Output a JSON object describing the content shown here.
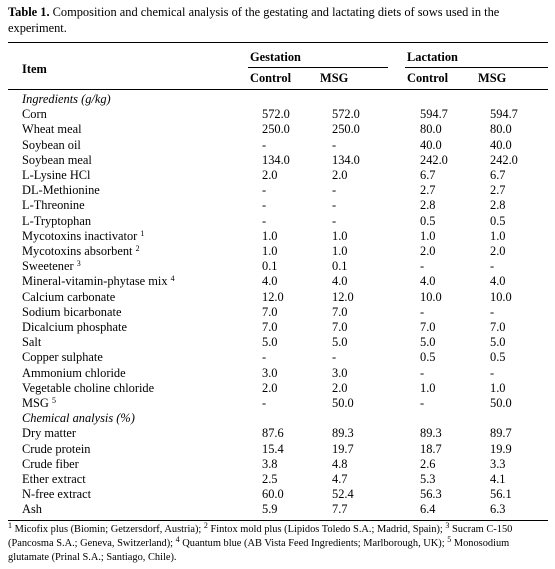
{
  "caption": {
    "label": "Table 1.",
    "text": " Composition and chemical analysis of the gestating and lactating diets of sows used in the experiment."
  },
  "header": {
    "item": "Item",
    "gestation": "Gestation",
    "lactation": "Lactation",
    "control": "Control",
    "msg": "MSG"
  },
  "rows": [
    {
      "type": "section",
      "label": "Ingredients (g/kg)"
    },
    {
      "label": "Corn",
      "sup": "",
      "values": [
        "572.0",
        "572.0",
        "594.7",
        "594.7"
      ]
    },
    {
      "label": "Wheat meal",
      "sup": "",
      "values": [
        "250.0",
        "250.0",
        "80.0",
        "80.0"
      ]
    },
    {
      "label": "Soybean oil",
      "sup": "",
      "values": [
        "-",
        "-",
        "40.0",
        "40.0"
      ]
    },
    {
      "label": "Soybean meal",
      "sup": "",
      "values": [
        "134.0",
        "134.0",
        "242.0",
        "242.0"
      ]
    },
    {
      "label": "L-Lysine HCl",
      "sup": "",
      "values": [
        "2.0",
        "2.0",
        "6.7",
        "6.7"
      ]
    },
    {
      "label": "DL-Methionine",
      "sup": "",
      "values": [
        "-",
        "-",
        "2.7",
        "2.7"
      ]
    },
    {
      "label": "L-Threonine",
      "sup": "",
      "values": [
        "-",
        "-",
        "2.8",
        "2.8"
      ]
    },
    {
      "label": "L-Tryptophan",
      "sup": "",
      "values": [
        "-",
        "-",
        "0.5",
        "0.5"
      ]
    },
    {
      "label": "Mycotoxins inactivator",
      "sup": "1",
      "values": [
        "1.0",
        "1.0",
        "1.0",
        "1.0"
      ]
    },
    {
      "label": "Mycotoxins absorbent",
      "sup": "2",
      "values": [
        "1.0",
        "1.0",
        "2.0",
        "2.0"
      ]
    },
    {
      "label": "Sweetener",
      "sup": "3",
      "values": [
        "0.1",
        "0.1",
        "-",
        "-"
      ]
    },
    {
      "label": "Mineral-vitamin-phytase mix",
      "sup": "4",
      "values": [
        "4.0",
        "4.0",
        "4.0",
        "4.0"
      ]
    },
    {
      "label": "Calcium carbonate",
      "sup": "",
      "values": [
        "12.0",
        "12.0",
        "10.0",
        "10.0"
      ]
    },
    {
      "label": "Sodium bicarbonate",
      "sup": "",
      "values": [
        "7.0",
        "7.0",
        "-",
        "-"
      ]
    },
    {
      "label": "Dicalcium phosphate",
      "sup": "",
      "values": [
        "7.0",
        "7.0",
        "7.0",
        "7.0"
      ]
    },
    {
      "label": "Salt",
      "sup": "",
      "values": [
        "5.0",
        "5.0",
        "5.0",
        "5.0"
      ]
    },
    {
      "label": "Copper sulphate",
      "sup": "",
      "values": [
        "-",
        "-",
        "0.5",
        "0.5"
      ]
    },
    {
      "label": "Ammonium chloride",
      "sup": "",
      "values": [
        "3.0",
        "3.0",
        "-",
        "-"
      ]
    },
    {
      "label": "Vegetable choline chloride",
      "sup": "",
      "values": [
        "2.0",
        "2.0",
        "1.0",
        "1.0"
      ]
    },
    {
      "label": "MSG",
      "sup": "5",
      "values": [
        "-",
        "50.0",
        "-",
        "50.0"
      ]
    },
    {
      "type": "section",
      "label": "Chemical analysis (%)"
    },
    {
      "label": "Dry matter",
      "sup": "",
      "values": [
        "87.6",
        "89.3",
        "89.3",
        "89.7"
      ]
    },
    {
      "label": "Crude protein",
      "sup": "",
      "values": [
        "15.4",
        "19.7",
        "18.7",
        "19.9"
      ]
    },
    {
      "label": "Crude fiber",
      "sup": "",
      "values": [
        "3.8",
        "4.8",
        "2.6",
        "3.3"
      ]
    },
    {
      "label": "Ether extract",
      "sup": "",
      "values": [
        "2.5",
        "4.7",
        "5.3",
        "4.1"
      ]
    },
    {
      "label": "N-free extract",
      "sup": "",
      "values": [
        "60.0",
        "52.4",
        "56.3",
        "56.1"
      ]
    },
    {
      "label": "Ash",
      "sup": "",
      "values": [
        "5.9",
        "7.7",
        "6.4",
        "6.3"
      ]
    }
  ],
  "footnotes": [
    {
      "sup": "1",
      "text": " Micofix plus (Biomin; Getzersdorf, Austria); "
    },
    {
      "sup": "2",
      "text": " Fintox mold plus (Lipidos Toledo S.A.; Madrid, Spain); "
    },
    {
      "sup": "3",
      "text": " Sucram C-150 (Pancosma S.A.; Geneva, Switzerland); "
    },
    {
      "sup": "4",
      "text": " Quantum blue (AB Vista Feed Ingredients; Marlborough, UK); "
    },
    {
      "sup": "5",
      "text": " Monosodium glutamate (Prinal S.A.; Santiago, Chile)."
    }
  ]
}
